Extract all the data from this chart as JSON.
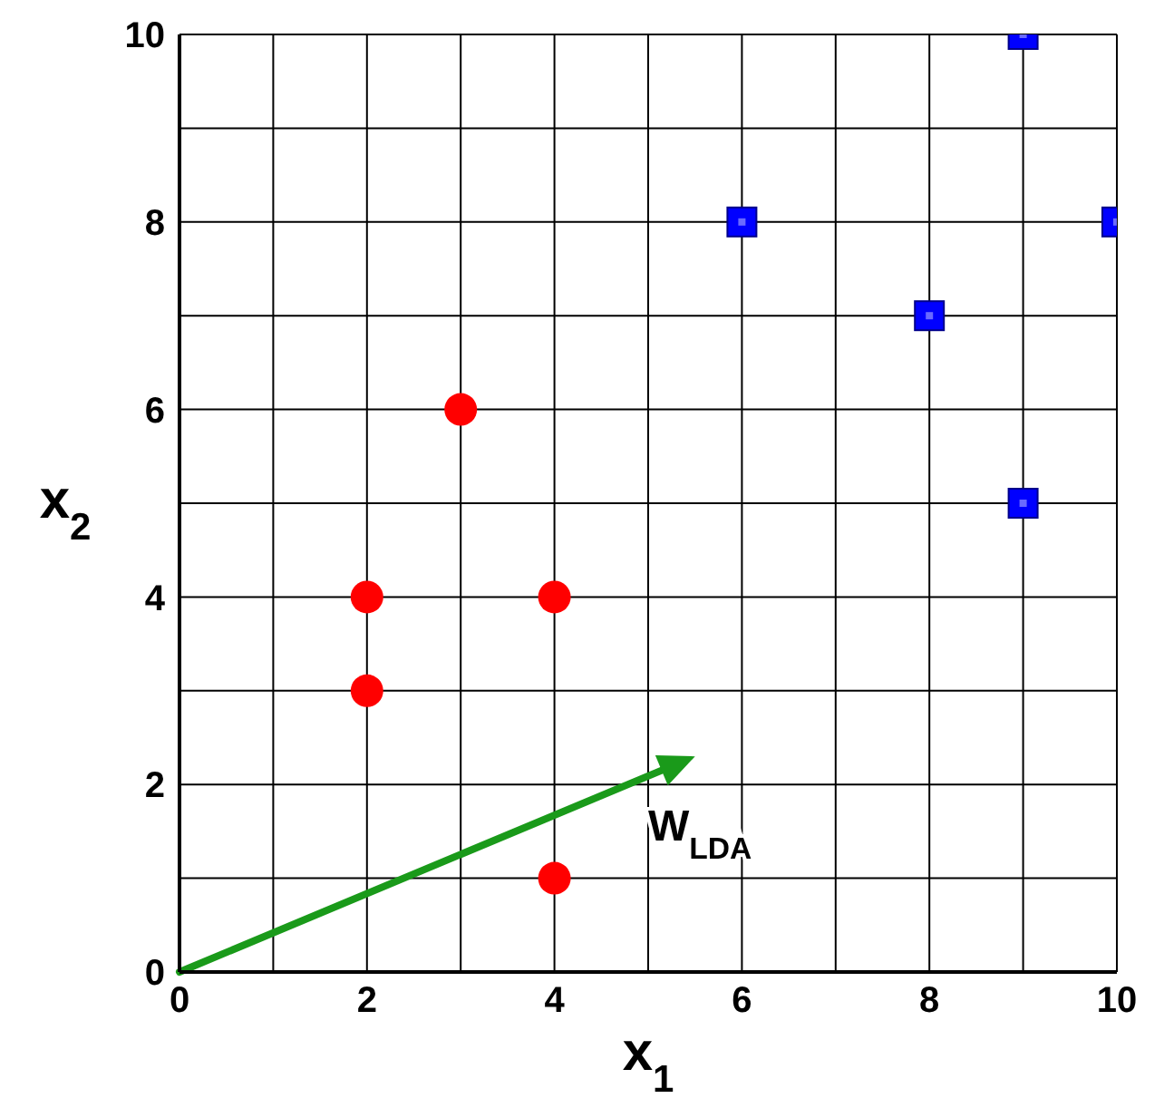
{
  "chart_data": {
    "type": "scatter",
    "xlabel": "x$_{1}$",
    "ylabel": "x$_{2}$",
    "xlim": [
      0,
      10
    ],
    "ylim": [
      0,
      10
    ],
    "xticks": [
      0,
      {
        "value": 1,
        "label": null
      },
      2,
      {
        "value": 3,
        "label": null
      },
      4,
      {
        "value": 5,
        "label": null
      },
      6,
      {
        "value": 7,
        "label": null
      },
      8,
      {
        "value": 9,
        "label": null
      },
      10
    ],
    "yticks": [
      0,
      {
        "value": 1,
        "label": null
      },
      2,
      {
        "value": 3,
        "label": null
      },
      4,
      {
        "value": 5,
        "label": null
      },
      6,
      {
        "value": 7,
        "label": null
      },
      8,
      {
        "value": 9,
        "label": null
      },
      10
    ],
    "grid": true,
    "series": [
      {
        "color": "#ff0000",
        "marker": "circle",
        "x": [
          3,
          2,
          4,
          2,
          4
        ],
        "values": [
          6,
          4,
          4,
          3,
          1
        ]
      },
      {
        "color": "#0000ff",
        "marker": "square",
        "x": [
          6,
          9,
          10,
          8,
          9
        ],
        "values": [
          8,
          10,
          8,
          7,
          5
        ]
      }
    ],
    "annotations": [
      "W$_{LDA}$"
    ]
  }
}
